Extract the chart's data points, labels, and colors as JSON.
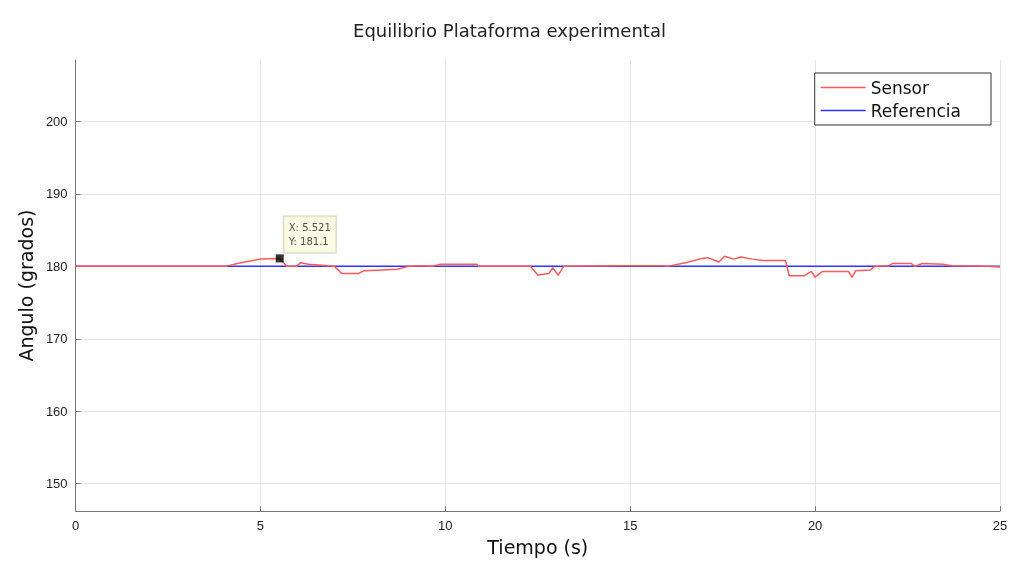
{
  "chart_data": {
    "type": "line",
    "title": "Equilibrio Plataforma experimental",
    "xlabel": "Tiempo (s)",
    "ylabel": "Angulo (grados)",
    "xlim": [
      0,
      25
    ],
    "xticks": [
      0,
      5,
      10,
      15,
      20,
      25
    ],
    "ylim": [
      146.2,
      208.5
    ],
    "yticks": [
      150,
      160,
      170,
      180,
      190,
      200
    ],
    "grid": true,
    "legend": "top right",
    "marker": "none",
    "line_style": "solid",
    "annotations": [
      {
        "text": "X: 5.521\nY: 181.1",
        "x": 5.521,
        "y": 181.1
      }
    ],
    "series": [
      {
        "name": "Sensor",
        "color": "#ff5a5a",
        "x": [
          0,
          4.06,
          4.46,
          5.0,
          5.521,
          5.71,
          5.98,
          6.08,
          6.3,
          7.0,
          7.2,
          7.65,
          7.8,
          8.3,
          8.7,
          9.0,
          9.4,
          9.65,
          9.86,
          10.3,
          10.85,
          10.9,
          12.3,
          12.5,
          12.8,
          12.9,
          13.05,
          13.2,
          14.7,
          15.9,
          16.0,
          16.5,
          16.95,
          17.1,
          17.4,
          17.55,
          17.8,
          18.0,
          18.3,
          18.6,
          19.2,
          19.3,
          19.7,
          19.9,
          20.0,
          20.2,
          20.9,
          21.0,
          21.1,
          21.5,
          21.6,
          22.0,
          22.1,
          22.6,
          22.7,
          22.9,
          23.45,
          23.7,
          24.65,
          25
        ],
        "values": [
          180,
          180,
          180.5,
          181,
          181.1,
          180,
          180,
          180.5,
          180.3,
          180,
          179,
          179,
          179.4,
          179.5,
          179.6,
          180,
          180.1,
          180,
          180.3,
          180.3,
          180.3,
          180,
          180,
          178.8,
          179,
          179.8,
          178.8,
          180,
          180.1,
          180.1,
          180,
          180.5,
          181.1,
          181.2,
          180.6,
          181.4,
          181,
          181.3,
          181,
          180.8,
          180.8,
          178.7,
          178.7,
          179.3,
          178.5,
          179.3,
          179.3,
          178.5,
          179.4,
          179.5,
          180,
          180.1,
          180.4,
          180.4,
          180,
          180.4,
          180.3,
          180.1,
          180,
          179.9
        ]
      },
      {
        "name": "Referencia",
        "color": "#3333ff",
        "x": [
          0,
          25
        ],
        "values": [
          180,
          180
        ]
      }
    ]
  }
}
